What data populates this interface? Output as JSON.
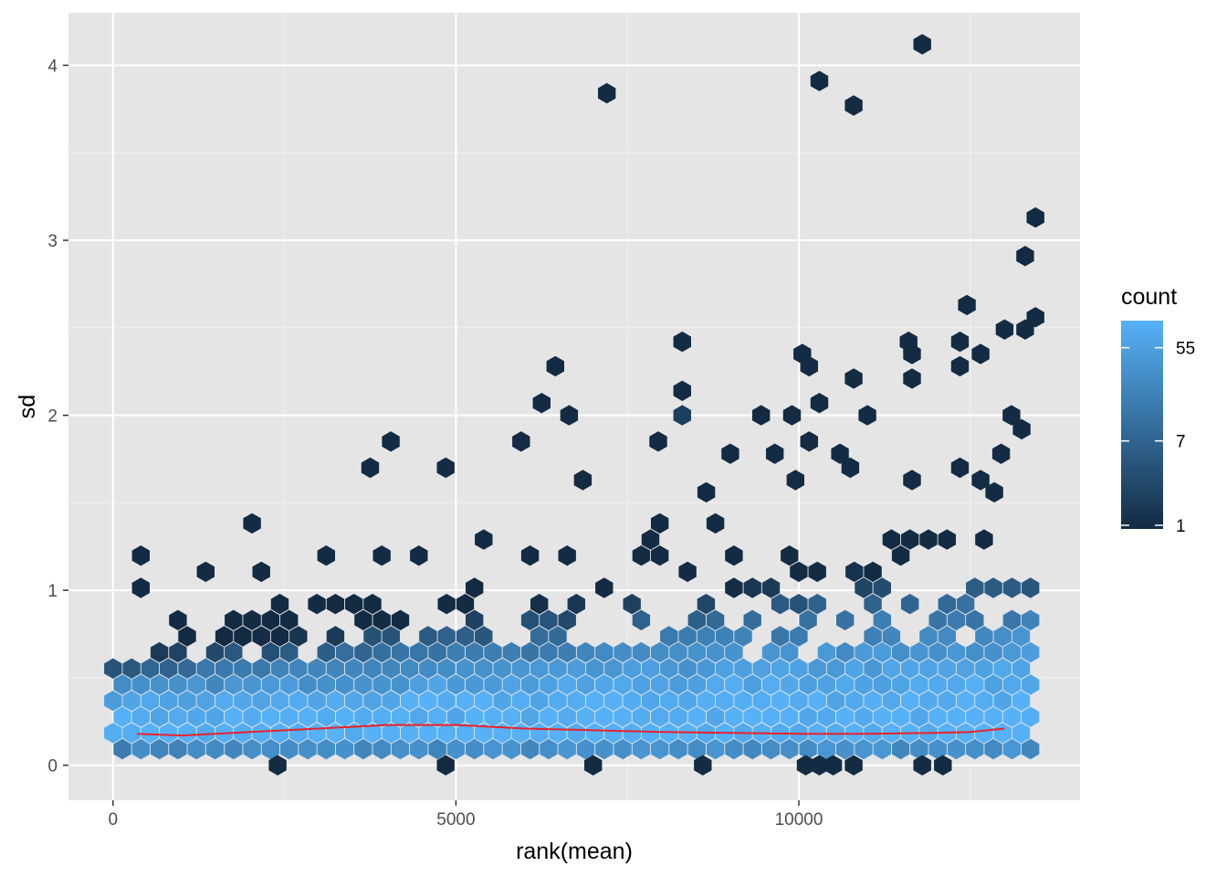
{
  "chart_data": {
    "type": "hexbin",
    "xlabel": "rank(mean)",
    "ylabel": "sd",
    "xlim": [
      -650,
      14100
    ],
    "ylim": [
      -0.2,
      4.3
    ],
    "x_ticks": [
      0,
      5000,
      10000
    ],
    "x_tick_labels": [
      "0",
      "5000",
      "10000"
    ],
    "y_ticks": [
      0,
      1,
      2,
      3,
      4
    ],
    "y_tick_labels": [
      "0",
      "1",
      "2",
      "3",
      "4"
    ],
    "grid": true,
    "background": "#e5e5e5",
    "legend": {
      "title": "count",
      "position": "right",
      "scale": "log",
      "min": 1,
      "max": 100,
      "breaks": [
        1,
        7,
        55
      ],
      "break_labels": [
        "1",
        "7",
        "55"
      ],
      "low_color": "#132b43",
      "high_color": "#56b1f7"
    },
    "smooth_line": {
      "color": "#e8222a",
      "points": [
        [
          350,
          0.18
        ],
        [
          1000,
          0.17
        ],
        [
          2000,
          0.19
        ],
        [
          3000,
          0.21
        ],
        [
          4000,
          0.23
        ],
        [
          5000,
          0.23
        ],
        [
          6000,
          0.21
        ],
        [
          7000,
          0.2
        ],
        [
          8000,
          0.19
        ],
        [
          9000,
          0.185
        ],
        [
          10000,
          0.18
        ],
        [
          11000,
          0.18
        ],
        [
          12000,
          0.185
        ],
        [
          12500,
          0.19
        ],
        [
          13000,
          0.21
        ]
      ]
    },
    "outliers": [
      {
        "x": 4050,
        "y": 1.85,
        "count": 1
      },
      {
        "x": 3750,
        "y": 1.7,
        "count": 1
      },
      {
        "x": 4850,
        "y": 1.7,
        "count": 1
      },
      {
        "x": 5950,
        "y": 1.85,
        "count": 1
      },
      {
        "x": 6250,
        "y": 2.07,
        "count": 1
      },
      {
        "x": 6450,
        "y": 2.28,
        "count": 1
      },
      {
        "x": 6650,
        "y": 2.0,
        "count": 1
      },
      {
        "x": 6850,
        "y": 1.63,
        "count": 1
      },
      {
        "x": 7200,
        "y": 3.84,
        "count": 1
      },
      {
        "x": 7950,
        "y": 1.85,
        "count": 1
      },
      {
        "x": 8300,
        "y": 2.42,
        "count": 1
      },
      {
        "x": 8300,
        "y": 2.14,
        "count": 1
      },
      {
        "x": 8300,
        "y": 2.0,
        "count": 2
      },
      {
        "x": 8650,
        "y": 1.56,
        "count": 1
      },
      {
        "x": 9000,
        "y": 1.78,
        "count": 1
      },
      {
        "x": 9450,
        "y": 2.0,
        "count": 1
      },
      {
        "x": 9650,
        "y": 1.78,
        "count": 1
      },
      {
        "x": 9950,
        "y": 1.63,
        "count": 1
      },
      {
        "x": 9900,
        "y": 2.0,
        "count": 1
      },
      {
        "x": 10050,
        "y": 2.35,
        "count": 1
      },
      {
        "x": 10150,
        "y": 2.28,
        "count": 1
      },
      {
        "x": 10300,
        "y": 2.07,
        "count": 1
      },
      {
        "x": 10300,
        "y": 3.91,
        "count": 1
      },
      {
        "x": 10150,
        "y": 1.85,
        "count": 1
      },
      {
        "x": 10800,
        "y": 3.77,
        "count": 1
      },
      {
        "x": 10800,
        "y": 2.21,
        "count": 1
      },
      {
        "x": 11000,
        "y": 2.0,
        "count": 1
      },
      {
        "x": 10600,
        "y": 1.78,
        "count": 1
      },
      {
        "x": 10750,
        "y": 1.7,
        "count": 1
      },
      {
        "x": 11600,
        "y": 2.42,
        "count": 1
      },
      {
        "x": 11650,
        "y": 2.21,
        "count": 1
      },
      {
        "x": 11650,
        "y": 2.35,
        "count": 1
      },
      {
        "x": 11800,
        "y": 4.12,
        "count": 1
      },
      {
        "x": 11650,
        "y": 1.63,
        "count": 1
      },
      {
        "x": 12350,
        "y": 2.42,
        "count": 1
      },
      {
        "x": 12350,
        "y": 2.28,
        "count": 1
      },
      {
        "x": 12350,
        "y": 1.7,
        "count": 1
      },
      {
        "x": 12450,
        "y": 2.63,
        "count": 1
      },
      {
        "x": 12650,
        "y": 2.35,
        "count": 1
      },
      {
        "x": 12650,
        "y": 1.63,
        "count": 1
      },
      {
        "x": 12850,
        "y": 1.56,
        "count": 1
      },
      {
        "x": 12950,
        "y": 1.78,
        "count": 1
      },
      {
        "x": 13000,
        "y": 2.49,
        "count": 1
      },
      {
        "x": 13100,
        "y": 2.0,
        "count": 1
      },
      {
        "x": 13300,
        "y": 2.91,
        "count": 1
      },
      {
        "x": 13450,
        "y": 3.13,
        "count": 1
      },
      {
        "x": 13300,
        "y": 2.49,
        "count": 1
      },
      {
        "x": 13450,
        "y": 2.56,
        "count": 1
      },
      {
        "x": 13250,
        "y": 1.92,
        "count": 1
      },
      {
        "x": 7000,
        "y": 0.0,
        "count": 1
      },
      {
        "x": 4850,
        "y": 0.0,
        "count": 1
      },
      {
        "x": 2400,
        "y": 0.0,
        "count": 1
      },
      {
        "x": 8600,
        "y": 0.0,
        "count": 1
      },
      {
        "x": 10100,
        "y": 0.0,
        "count": 1
      },
      {
        "x": 10300,
        "y": 0.0,
        "count": 1
      },
      {
        "x": 10500,
        "y": 0.0,
        "count": 1
      },
      {
        "x": 10800,
        "y": 0.0,
        "count": 1
      },
      {
        "x": 11800,
        "y": 0.0,
        "count": 1
      },
      {
        "x": 12100,
        "y": 0.0,
        "count": 1
      }
    ],
    "bulk_profile": {
      "note": "dense band of bins with counts decreasing as sd increases",
      "rank_range": [
        0,
        13400
      ],
      "peak_sd": 0.22,
      "peak_count": 100
    }
  }
}
